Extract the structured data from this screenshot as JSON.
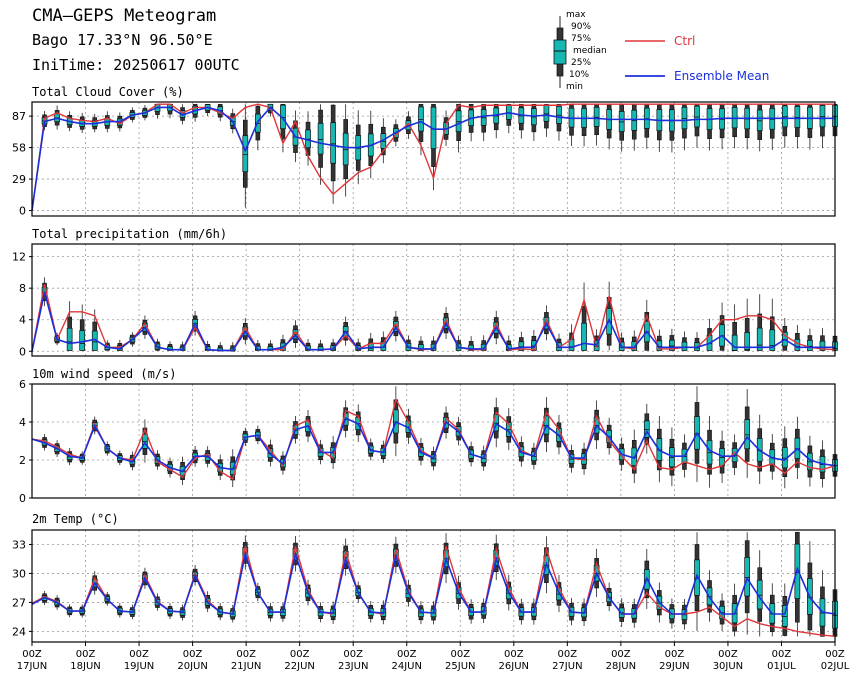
{
  "header": {
    "title": "CMA—GEPS Meteogram",
    "location": "Bago 17.33°N 96.50°E",
    "init_time": "IniTime: 20250617 00UTC"
  },
  "legend": {
    "box_labels": [
      "max",
      "90%",
      "75%",
      "median",
      "25%",
      "10%",
      "min"
    ],
    "ctrl_label": "Ctrl",
    "mean_label": "Ensemble Mean",
    "ctrl_color": "#e0363a",
    "mean_color": "#1b2fdc",
    "box_color": "#17b8b3"
  },
  "chart_data": [
    {
      "type": "line",
      "title": "Total Cloud Cover (%)",
      "ylim": [
        -5,
        100
      ],
      "yticks": [
        0,
        29,
        58,
        87
      ],
      "x_step_hours": 6,
      "ctrl": [
        0,
        85,
        90,
        85,
        83,
        82,
        85,
        80,
        88,
        90,
        98,
        98,
        90,
        95,
        95,
        90,
        85,
        95,
        98,
        95,
        62,
        82,
        50,
        30,
        15,
        25,
        35,
        40,
        55,
        70,
        80,
        60,
        30,
        80,
        97,
        95,
        97,
        97,
        97,
        97,
        97,
        97,
        97,
        98,
        98,
        98,
        98,
        98,
        98,
        98,
        98,
        98,
        98,
        98,
        98,
        98,
        98,
        98,
        98,
        98,
        98,
        98,
        98,
        98,
        98
      ],
      "mean": [
        0,
        82,
        85,
        82,
        80,
        80,
        82,
        82,
        88,
        90,
        95,
        95,
        88,
        92,
        95,
        92,
        82,
        55,
        82,
        95,
        85,
        68,
        65,
        62,
        60,
        58,
        58,
        60,
        65,
        72,
        78,
        82,
        75,
        75,
        80,
        85,
        87,
        88,
        90,
        88,
        87,
        88,
        86,
        85,
        85,
        85,
        84,
        84,
        84,
        84,
        83,
        83,
        83,
        84,
        84,
        85,
        85,
        85,
        85,
        85,
        85,
        85,
        85,
        85,
        85
      ]
    },
    {
      "type": "line",
      "title": "Total precipitation (mm/6h)",
      "ylim": [
        -0.6,
        13.6
      ],
      "yticks": [
        0,
        4,
        8,
        12
      ],
      "x_step_hours": 6,
      "ctrl": [
        0,
        8.5,
        1.5,
        5.0,
        5.0,
        4.5,
        0.5,
        0.5,
        1.5,
        3.5,
        0.5,
        0.2,
        0.2,
        3.0,
        0.2,
        0.1,
        0.1,
        3.0,
        0.2,
        0.2,
        0.2,
        2.5,
        0.2,
        0.2,
        0.3,
        2.0,
        0.3,
        1.0,
        1.0,
        3.5,
        0.5,
        0.2,
        0.3,
        4.0,
        0.5,
        0.2,
        0.2,
        3.5,
        0.2,
        0.3,
        0.2,
        4.0,
        0.5,
        1.5,
        6.5,
        0.5,
        7.0,
        0.5,
        0.3,
        4.5,
        0.3,
        0.3,
        0.5,
        0.5,
        2.0,
        4.0,
        4.0,
        4.5,
        4.5,
        4.0,
        2.0,
        1.0,
        0.5,
        0.3,
        0.2
      ],
      "mean": [
        0,
        7.5,
        1.5,
        1.0,
        1.2,
        1.5,
        0.5,
        0.3,
        1.5,
        3.0,
        0.5,
        0.2,
        0.2,
        3.5,
        0.2,
        0.1,
        0.1,
        2.5,
        0.2,
        0.2,
        0.5,
        2.0,
        0.2,
        0.2,
        0.3,
        2.5,
        0.3,
        0.5,
        0.5,
        3.0,
        0.5,
        0.3,
        0.3,
        3.5,
        0.5,
        0.3,
        0.3,
        3.0,
        0.3,
        0.5,
        0.5,
        3.5,
        0.5,
        0.5,
        1.0,
        0.8,
        4.0,
        0.5,
        0.5,
        2.5,
        0.5,
        0.5,
        0.5,
        0.5,
        1.0,
        2.0,
        0.5,
        0.5,
        0.5,
        0.5,
        1.5,
        0.5,
        0.5,
        0.5,
        0.5
      ]
    },
    {
      "type": "line",
      "title": "10m wind speed (m/s)",
      "ylim": [
        0,
        6
      ],
      "yticks": [
        0,
        2,
        4,
        6
      ],
      "x_step_hours": 6,
      "ctrl": [
        3.1,
        3.0,
        2.7,
        2.3,
        2.1,
        3.9,
        2.6,
        2.1,
        2.0,
        3.6,
        1.9,
        1.5,
        1.1,
        2.1,
        2.3,
        1.4,
        1.0,
        3.2,
        3.3,
        2.5,
        1.7,
        3.8,
        4.1,
        2.5,
        2.1,
        4.6,
        4.3,
        2.5,
        2.4,
        5.2,
        4.0,
        2.5,
        2.1,
        4.2,
        3.6,
        2.3,
        2.1,
        4.5,
        3.9,
        2.5,
        2.2,
        4.5,
        3.6,
        2.1,
        2.0,
        4.3,
        3.0,
        2.2,
        1.5,
        3.0,
        1.6,
        1.5,
        1.9,
        1.7,
        1.5,
        1.7,
        2.4,
        1.8,
        1.6,
        1.8,
        1.3,
        1.9,
        1.6,
        1.5,
        1.7
      ],
      "mean": [
        3.1,
        2.9,
        2.6,
        2.2,
        2.1,
        3.8,
        2.6,
        2.1,
        1.9,
        2.9,
        2.0,
        1.6,
        1.4,
        2.2,
        2.2,
        1.6,
        1.5,
        3.2,
        3.3,
        2.3,
        1.8,
        3.6,
        3.8,
        2.4,
        2.4,
        4.2,
        3.9,
        2.5,
        2.4,
        4.0,
        3.7,
        2.4,
        2.1,
        4.0,
        3.5,
        2.3,
        2.1,
        3.9,
        3.5,
        2.4,
        2.2,
        3.8,
        3.3,
        2.1,
        2.1,
        3.8,
        3.2,
        2.3,
        2.1,
        3.5,
        2.5,
        2.2,
        2.2,
        3.4,
        2.5,
        2.2,
        2.2,
        3.2,
        2.5,
        2.1,
        2.0,
        2.6,
        2.0,
        1.8,
        1.7
      ]
    },
    {
      "type": "line",
      "title": "2m Temp (°C)",
      "ylim": [
        22.9,
        34.5
      ],
      "yticks": [
        24,
        27,
        30,
        33
      ],
      "x_step_hours": 6,
      "ctrl": [
        26.9,
        27.6,
        27.1,
        26.1,
        26.1,
        29.5,
        27.3,
        26.1,
        26.0,
        29.8,
        27.1,
        26.1,
        26.0,
        30.0,
        27.2,
        26.0,
        25.8,
        32.8,
        28.0,
        26.0,
        26.0,
        32.8,
        28.3,
        26.0,
        25.8,
        32.3,
        28.0,
        26.0,
        25.8,
        32.5,
        28.2,
        26.0,
        25.9,
        32.8,
        28.5,
        26.0,
        26.0,
        32.5,
        28.5,
        26.0,
        26.0,
        32.5,
        28.5,
        26.0,
        25.9,
        31.0,
        27.5,
        25.8,
        25.8,
        28.0,
        26.5,
        25.8,
        25.8,
        26.0,
        26.5,
        25.5,
        24.5,
        25.3,
        24.8,
        24.5,
        24.3,
        24.0,
        23.8,
        23.6,
        23.5
      ],
      "mean": [
        26.8,
        27.5,
        27.0,
        26.1,
        26.1,
        29.0,
        27.3,
        26.1,
        26.0,
        29.5,
        27.0,
        26.1,
        26.0,
        29.8,
        27.0,
        26.0,
        25.8,
        32.0,
        28.0,
        26.0,
        26.0,
        32.0,
        28.0,
        26.0,
        25.9,
        31.5,
        28.0,
        26.0,
        25.9,
        31.8,
        28.0,
        26.0,
        25.9,
        31.5,
        28.0,
        26.0,
        26.0,
        31.5,
        28.0,
        26.0,
        26.0,
        31.0,
        28.0,
        26.0,
        25.9,
        30.0,
        27.5,
        25.8,
        25.8,
        29.5,
        27.0,
        25.8,
        25.8,
        29.8,
        27.5,
        25.8,
        25.8,
        29.5,
        27.5,
        25.8,
        25.8,
        30.5,
        27.5,
        26.0,
        25.8
      ]
    }
  ],
  "x_axis": {
    "hour_label": "00Z",
    "date_labels": [
      "17JUN",
      "18JUN",
      "19JUN",
      "20JUN",
      "21JUN",
      "22JUN",
      "23JUN",
      "24JUN",
      "25JUN",
      "26JUN",
      "27JUN",
      "28JUN",
      "29JUN",
      "30JUN",
      "01JUL",
      "02JUL"
    ]
  }
}
